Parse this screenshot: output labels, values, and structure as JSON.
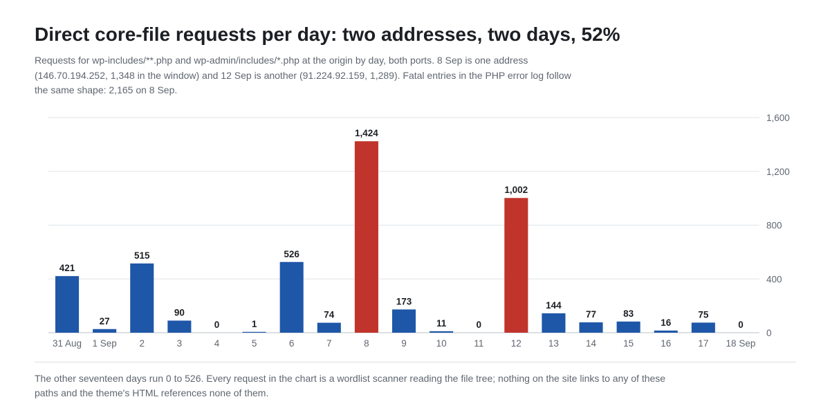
{
  "header": {
    "title": "Direct core-file requests per day: two addresses, two days, 52%",
    "subtitle": "Requests for wp-includes/**.php and wp-admin/includes/*.php at the origin by day, both ports. 8 Sep is one address (146.70.194.252, 1,348 in the window) and 12 Sep is another (91.224.92.159, 1,289). Fatal entries in the PHP error log follow the same shape: 2,165 on 8 Sep."
  },
  "footer": {
    "note": "The other seventeen days run 0 to 526. Every request in the chart is a wordlist scanner reading the file tree; nothing on the site links to any of these paths and the theme's HTML references none of them."
  },
  "chart_data": {
    "type": "bar",
    "title": "Direct core-file requests per day: two addresses, two days, 52%",
    "xlabel": "",
    "ylabel": "",
    "categories": [
      "31 Aug",
      "1 Sep",
      "2",
      "3",
      "4",
      "5",
      "6",
      "7",
      "8",
      "9",
      "10",
      "11",
      "12",
      "13",
      "14",
      "15",
      "16",
      "17",
      "18 Sep"
    ],
    "values": [
      421,
      27,
      515,
      90,
      0,
      1,
      526,
      74,
      1424,
      173,
      11,
      0,
      1002,
      144,
      77,
      83,
      16,
      75,
      0
    ],
    "value_labels": [
      "421",
      "27",
      "515",
      "90",
      "0",
      "1",
      "526",
      "74",
      "1,424",
      "173",
      "11",
      "0",
      "1,002",
      "144",
      "77",
      "83",
      "16",
      "75",
      "0"
    ],
    "highlighted": [
      false,
      false,
      false,
      false,
      false,
      false,
      false,
      false,
      true,
      false,
      false,
      false,
      true,
      false,
      false,
      false,
      false,
      false,
      false
    ],
    "ylim": [
      0,
      1600
    ],
    "y_ticks": [
      0,
      400,
      800,
      1200,
      1600
    ],
    "y_tick_labels": [
      "0",
      "400",
      "800",
      "1,200",
      "1,600"
    ],
    "y_axis_side": "right",
    "grid": true,
    "legend": "none",
    "colors": {
      "bar": "#1f57a8",
      "highlight": "#c0342b",
      "grid": "#dfe3e8",
      "axis": "#b9bfc6"
    }
  }
}
